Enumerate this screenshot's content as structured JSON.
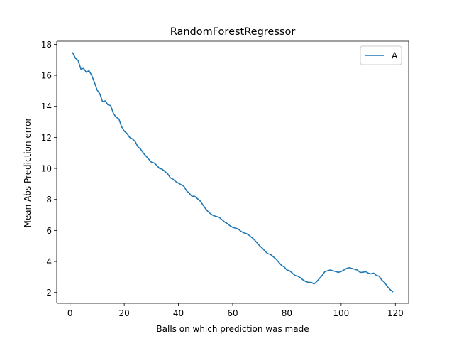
{
  "chart_data": {
    "type": "line",
    "title": "RandomForestRegressor",
    "xlabel": "Balls on which prediction was made",
    "ylabel": "Mean Abs Prediction error",
    "xlim": [
      -4.9,
      124.9
    ],
    "ylim": [
      1.3,
      18.2
    ],
    "xticks": [
      0,
      20,
      40,
      60,
      80,
      100,
      120
    ],
    "yticks": [
      2,
      4,
      6,
      8,
      10,
      12,
      14,
      16,
      18
    ],
    "grid": false,
    "legend_position": "top-right",
    "series": [
      {
        "name": "A",
        "color": "#1f77b4",
        "x": [
          1,
          2,
          3,
          4,
          5,
          6,
          7,
          8,
          9,
          10,
          11,
          12,
          13,
          14,
          15,
          16,
          17,
          18,
          19,
          20,
          21,
          22,
          23,
          24,
          25,
          26,
          27,
          28,
          29,
          30,
          31,
          32,
          33,
          34,
          35,
          36,
          37,
          38,
          39,
          40,
          41,
          42,
          43,
          44,
          45,
          46,
          47,
          48,
          49,
          50,
          51,
          52,
          53,
          54,
          55,
          56,
          57,
          58,
          59,
          60,
          61,
          62,
          63,
          64,
          65,
          66,
          67,
          68,
          69,
          70,
          71,
          72,
          73,
          74,
          75,
          76,
          77,
          78,
          79,
          80,
          81,
          82,
          83,
          84,
          85,
          86,
          87,
          88,
          89,
          90,
          91,
          92,
          93,
          94,
          95,
          96,
          97,
          98,
          99,
          100,
          101,
          102,
          103,
          104,
          105,
          106,
          107,
          108,
          109,
          110,
          111,
          112,
          113,
          114,
          115,
          116,
          117,
          118,
          119
        ],
        "y": [
          17.45,
          17.1,
          16.95,
          16.4,
          16.45,
          16.2,
          16.3,
          16.0,
          15.55,
          15.05,
          14.8,
          14.3,
          14.35,
          14.1,
          14.05,
          13.55,
          13.3,
          13.2,
          12.7,
          12.4,
          12.25,
          12.0,
          11.9,
          11.75,
          11.4,
          11.25,
          11.0,
          10.8,
          10.6,
          10.4,
          10.35,
          10.2,
          10.0,
          9.95,
          9.8,
          9.65,
          9.4,
          9.3,
          9.15,
          9.05,
          8.95,
          8.85,
          8.55,
          8.4,
          8.2,
          8.2,
          8.05,
          7.9,
          7.65,
          7.4,
          7.2,
          7.05,
          6.95,
          6.9,
          6.85,
          6.7,
          6.55,
          6.45,
          6.3,
          6.2,
          6.15,
          6.1,
          5.95,
          5.85,
          5.8,
          5.7,
          5.55,
          5.4,
          5.2,
          5.0,
          4.85,
          4.65,
          4.5,
          4.45,
          4.3,
          4.15,
          3.95,
          3.75,
          3.65,
          3.45,
          3.4,
          3.25,
          3.1,
          3.05,
          2.95,
          2.8,
          2.7,
          2.65,
          2.65,
          2.55,
          2.7,
          2.9,
          3.1,
          3.35,
          3.4,
          3.45,
          3.4,
          3.35,
          3.3,
          3.35,
          3.45,
          3.55,
          3.6,
          3.55,
          3.5,
          3.45,
          3.3,
          3.3,
          3.35,
          3.25,
          3.2,
          3.25,
          3.1,
          3.05,
          2.8,
          2.65,
          2.4,
          2.2,
          2.05
        ]
      }
    ]
  }
}
